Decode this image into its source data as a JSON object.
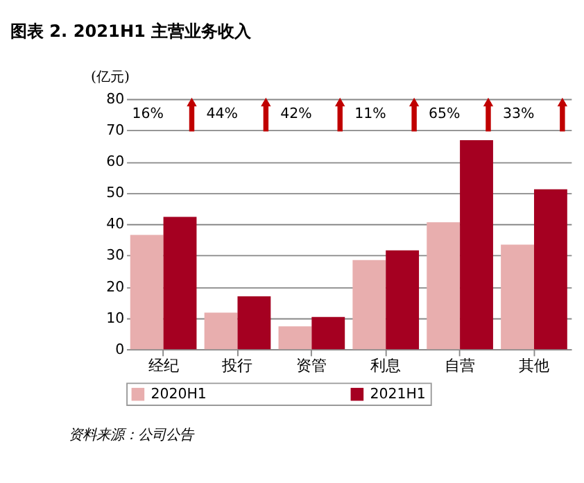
{
  "chart_data": {
    "type": "bar",
    "title": "图表 2. 2021H1 主营业务收入",
    "ylabel": "(亿元)",
    "categories": [
      "经纪",
      "投行",
      "资管",
      "利息",
      "自营",
      "其他"
    ],
    "series": [
      {
        "name": "2020H1",
        "color": "#e8aeae",
        "values": [
          36.5,
          11.7,
          7.3,
          28.5,
          40.6,
          33.4
        ]
      },
      {
        "name": "2021H1",
        "color": "#a50021",
        "values": [
          42.3,
          16.9,
          10.3,
          31.6,
          66.8,
          51.1
        ]
      }
    ],
    "ylim": [
      0,
      80
    ],
    "yticks": [
      0,
      10,
      20,
      30,
      40,
      50,
      60,
      70,
      80
    ],
    "grid": "y",
    "legend": "bottom",
    "annotations": [
      "16%",
      "44%",
      "42%",
      "11%",
      "65%",
      "33%",
      "资料来源：公司公告"
    ]
  }
}
